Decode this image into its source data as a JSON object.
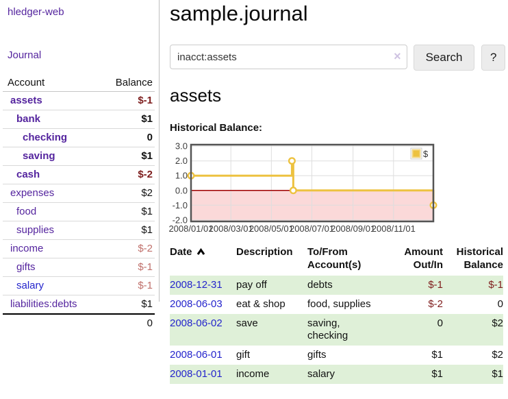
{
  "app": {
    "title": "hledger-web",
    "nav_journal": "Journal"
  },
  "sidebar": {
    "accounts_table": {
      "headers": {
        "account": "Account",
        "balance": "Balance"
      },
      "rows": [
        {
          "name": "assets",
          "indent": 0,
          "balance": "$-1",
          "bold": true,
          "negative": true,
          "link_color": "purple"
        },
        {
          "name": "bank",
          "indent": 1,
          "balance": "$1",
          "bold": true,
          "negative": false,
          "link_color": "purple"
        },
        {
          "name": "checking",
          "indent": 2,
          "balance": "0",
          "bold": true,
          "negative": false,
          "link_color": "purple"
        },
        {
          "name": "saving",
          "indent": 2,
          "balance": "$1",
          "bold": true,
          "negative": false,
          "link_color": "purple"
        },
        {
          "name": "cash",
          "indent": 1,
          "balance": "$-2",
          "bold": true,
          "negative": true,
          "link_color": "purple"
        },
        {
          "name": "expenses",
          "indent": 0,
          "balance": "$2",
          "bold": false,
          "negative": false,
          "link_color": "purple"
        },
        {
          "name": "food",
          "indent": 1,
          "balance": "$1",
          "bold": false,
          "negative": false,
          "link_color": "purple"
        },
        {
          "name": "supplies",
          "indent": 1,
          "balance": "$1",
          "bold": false,
          "negative": false,
          "link_color": "purple"
        },
        {
          "name": "income",
          "indent": 0,
          "balance": "$-2",
          "bold": false,
          "negative": true,
          "link_color": "purple"
        },
        {
          "name": "gifts",
          "indent": 1,
          "balance": "$-1",
          "bold": false,
          "negative": true,
          "link_color": "purple"
        },
        {
          "name": "salary",
          "indent": 1,
          "balance": "$-1",
          "bold": false,
          "negative": true,
          "link_color": "blue"
        },
        {
          "name": "liabilities:debts",
          "indent": 0,
          "balance": "$1",
          "bold": false,
          "negative": false,
          "link_color": "purple"
        }
      ],
      "total": "0"
    }
  },
  "main": {
    "title": "sample.journal",
    "search": {
      "value": "inacct:assets",
      "clear_icon": "×",
      "button": "Search",
      "help_button": "?"
    },
    "account_heading": "assets",
    "chart_heading": "Historical Balance:"
  },
  "chart_data": {
    "type": "line",
    "step": true,
    "title": "Historical Balance",
    "series": [
      {
        "name": "$",
        "color": "#EDC240",
        "points": [
          [
            "2008-01-01",
            1.0
          ],
          [
            "2008-06-01",
            2.0
          ],
          [
            "2008-06-03",
            0.0
          ],
          [
            "2008-12-31",
            -1.0
          ]
        ]
      }
    ],
    "xlim": [
      "2008-01-01",
      "2008-12-31"
    ],
    "ylim": [
      -2.1,
      3.1
    ],
    "y_ticks": [
      3.0,
      2.0,
      1.0,
      0.0,
      -1.0,
      -2.0
    ],
    "x_tick_labels": [
      "2008/01/01",
      "2008/03/01",
      "2008/05/01",
      "2008/07/01",
      "2008/09/01",
      "2008/11/01"
    ],
    "grid": true,
    "legend_position": "top-right",
    "legend_label": "$",
    "negative_region_color": "#fbd9d9",
    "zero_line_color": "#9e0000",
    "border_color": "#545454"
  },
  "transactions": {
    "headers": {
      "date": "Date",
      "description": "Description",
      "accounts": "To/From Account(s)",
      "amount": "Amount Out/In",
      "balance": "Historical Balance"
    },
    "rows": [
      {
        "date": "2008-12-31",
        "description": "pay off",
        "accounts": "debts",
        "amount": "$-1",
        "amount_negative": true,
        "balance": "$-1",
        "balance_negative": true
      },
      {
        "date": "2008-06-03",
        "description": "eat & shop",
        "accounts": "food, supplies",
        "amount": "$-2",
        "amount_negative": true,
        "balance": "0",
        "balance_negative": false
      },
      {
        "date": "2008-06-02",
        "description": "save",
        "accounts": "saving, checking",
        "amount": "0",
        "amount_negative": false,
        "balance": "$2",
        "balance_negative": false
      },
      {
        "date": "2008-06-01",
        "description": "gift",
        "accounts": "gifts",
        "amount": "$1",
        "amount_negative": false,
        "balance": "$2",
        "balance_negative": false
      },
      {
        "date": "2008-01-01",
        "description": "income",
        "accounts": "salary",
        "amount": "$1",
        "amount_negative": false,
        "balance": "$1",
        "balance_negative": false
      }
    ]
  }
}
